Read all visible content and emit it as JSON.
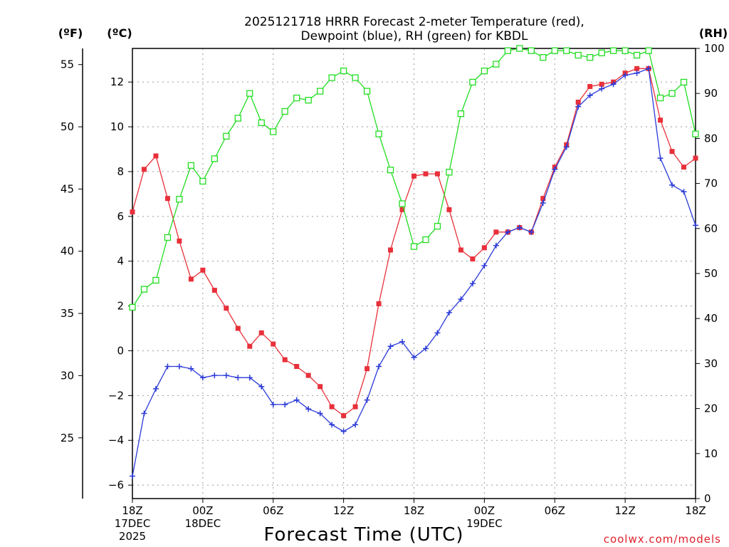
{
  "chart_data": {
    "type": "line",
    "title": [
      "2025121718 HRRR Forecast 2-meter Temperature (red),",
      "Dewpoint (blue), RH (green) for KBDL"
    ],
    "xlabel": "Forecast Time (UTC)",
    "credit": "coolwx.com/models",
    "units": {
      "fahrenheit": "(ºF)",
      "celsius": "(ºC)",
      "rh": "(RH)"
    },
    "x_range": [
      0,
      48
    ],
    "x_ticks": [
      {
        "x": 0,
        "labels": [
          "18Z",
          "17DEC",
          "2025"
        ]
      },
      {
        "x": 6,
        "labels": [
          "00Z",
          "18DEC"
        ]
      },
      {
        "x": 12,
        "labels": [
          "06Z"
        ]
      },
      {
        "x": 18,
        "labels": [
          "12Z"
        ]
      },
      {
        "x": 24,
        "labels": [
          "18Z"
        ]
      },
      {
        "x": 30,
        "labels": [
          "00Z",
          "19DEC"
        ]
      },
      {
        "x": 36,
        "labels": [
          "06Z"
        ]
      },
      {
        "x": 42,
        "labels": [
          "12Z"
        ]
      },
      {
        "x": 48,
        "labels": [
          "18Z"
        ]
      }
    ],
    "celsius_axis": {
      "range": [
        -6.6,
        13.5
      ],
      "ticks": [
        -6,
        -4,
        -2,
        0,
        2,
        4,
        6,
        8,
        10,
        12
      ]
    },
    "fahrenheit_axis": {
      "range": [
        20.12,
        56.3
      ],
      "ticks": [
        25,
        30,
        35,
        40,
        45,
        50,
        55
      ]
    },
    "rh_axis": {
      "range": [
        0,
        100
      ],
      "ticks": [
        0,
        10,
        20,
        30,
        40,
        50,
        60,
        70,
        80,
        90,
        100
      ]
    },
    "series": [
      {
        "name": "Temperature",
        "axis": "celsius",
        "color": "#e8303a",
        "marker": "filled-square",
        "values": [
          6.2,
          8.1,
          8.7,
          6.8,
          4.9,
          3.2,
          3.6,
          2.7,
          1.9,
          1.0,
          0.2,
          0.8,
          0.3,
          -0.4,
          -0.7,
          -1.1,
          -1.6,
          -2.5,
          -2.9,
          -2.5,
          -0.8,
          2.1,
          4.5,
          6.3,
          7.8,
          7.9,
          7.9,
          6.3,
          4.5,
          4.1,
          4.6,
          5.3,
          5.3,
          5.5,
          5.3,
          6.8,
          8.2,
          9.2,
          11.1,
          11.8,
          11.9,
          12.0,
          12.4,
          12.6,
          12.6,
          10.3,
          8.9,
          8.2,
          8.6
        ]
      },
      {
        "name": "Dewpoint",
        "axis": "celsius",
        "color": "#2a3ad8",
        "marker": "plus",
        "values": [
          -5.6,
          -2.8,
          -1.7,
          -0.7,
          -0.7,
          -0.8,
          -1.2,
          -1.1,
          -1.1,
          -1.2,
          -1.2,
          -1.6,
          -2.4,
          -2.4,
          -2.2,
          -2.6,
          -2.8,
          -3.3,
          -3.6,
          -3.3,
          -2.2,
          -0.7,
          0.2,
          0.4,
          -0.3,
          0.1,
          0.8,
          1.7,
          2.3,
          3.0,
          3.8,
          4.7,
          5.3,
          5.5,
          5.3,
          6.6,
          8.1,
          9.1,
          10.9,
          11.4,
          11.7,
          11.9,
          12.3,
          12.4,
          12.6,
          8.6,
          7.4,
          7.1,
          5.6
        ]
      },
      {
        "name": "Relative Humidity",
        "axis": "rh",
        "color": "#22dd22",
        "marker": "open-square",
        "values": [
          42.5,
          46.5,
          48.5,
          58,
          66.5,
          74,
          70.5,
          75.5,
          80.5,
          84.5,
          90,
          83.5,
          81.5,
          86,
          89,
          88.5,
          90.5,
          93.5,
          95,
          93.5,
          90.5,
          81,
          73,
          65.5,
          56,
          57.5,
          60.5,
          72.5,
          85.5,
          92.5,
          95,
          96.5,
          99.5,
          100,
          99.5,
          98,
          99.5,
          99.5,
          98.5,
          98,
          99,
          99.5,
          99.5,
          98.5,
          99.5,
          89,
          90,
          92.5,
          81
        ]
      }
    ]
  }
}
